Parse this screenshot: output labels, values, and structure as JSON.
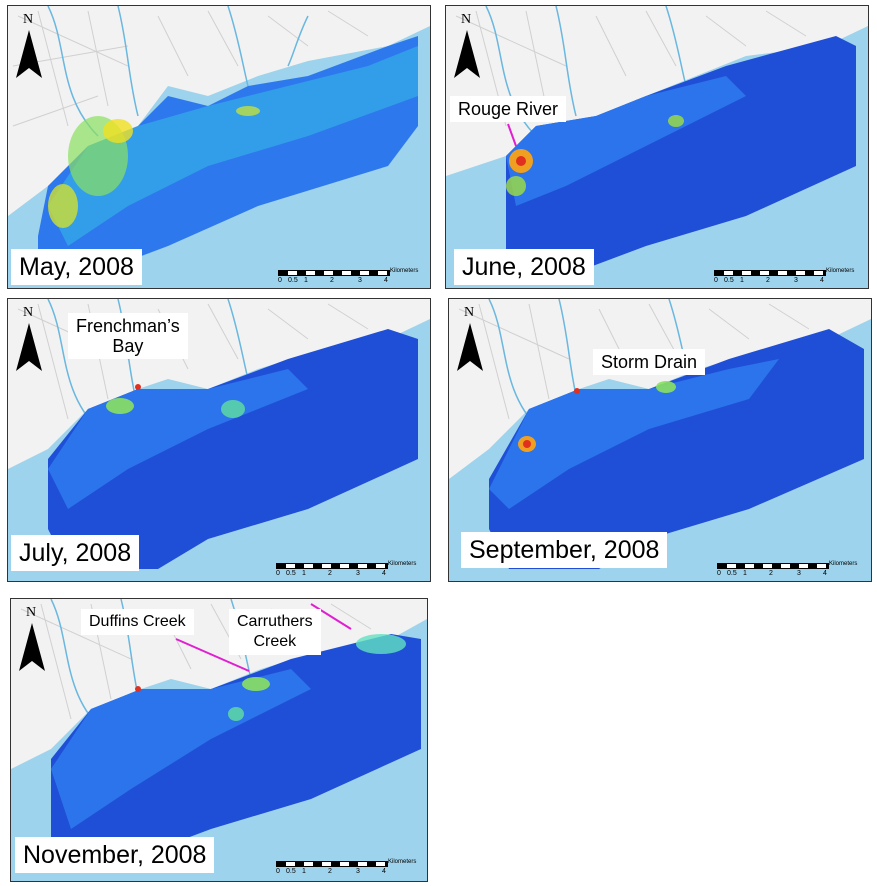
{
  "figure": {
    "panels": [
      {
        "id": "may",
        "date": "May, 2008",
        "callouts": []
      },
      {
        "id": "june",
        "date": "June, 2008",
        "callouts": [
          {
            "text": "Rouge River"
          }
        ]
      },
      {
        "id": "july",
        "date": "July, 2008",
        "callouts": [
          {
            "text": "Frenchman’s\nBay"
          }
        ]
      },
      {
        "id": "september",
        "date": "September, 2008",
        "callouts": [
          {
            "text": "Storm Drain"
          }
        ]
      },
      {
        "id": "november",
        "date": "November, 2008",
        "callouts": [
          {
            "text": "Duffins Creek"
          },
          {
            "text": "Carruthers\nCreek"
          }
        ]
      }
    ],
    "north_label": "N",
    "scalebar": {
      "unit": "Kilometers",
      "ticks": [
        "0",
        "0.5",
        "1",
        "2",
        "3",
        "4"
      ]
    },
    "colors": {
      "water": "#9dd3ec",
      "land": "#f4f4f4",
      "road": "#cfcfcf",
      "river": "#6ab7df",
      "deep": "#1f4fd6",
      "mid": "#2f7df0",
      "shallow": "#3fd0e0",
      "hot": "#f0e020",
      "hotter": "#e03020",
      "arrow": "#e020d0"
    }
  }
}
